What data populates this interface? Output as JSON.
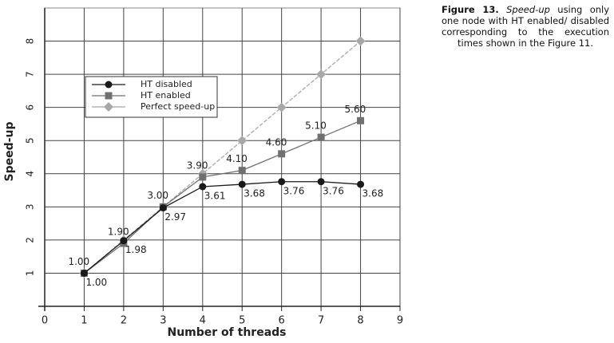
{
  "chart_data": {
    "type": "line",
    "x_label": "Number of threads",
    "y_label": "Speed-up",
    "x": [
      1,
      2,
      3,
      4,
      5,
      6,
      7,
      8
    ],
    "series": [
      {
        "name": "HT disabled",
        "color": "#1a1a1a",
        "marker": "circle",
        "label_position": "below",
        "values": [
          1.0,
          1.98,
          2.97,
          3.61,
          3.68,
          3.76,
          3.76,
          3.68
        ],
        "value_labels": [
          "1.00",
          "1.98",
          "2.97",
          "3.61",
          "3.68",
          "3.76",
          "3.76",
          "3.68"
        ]
      },
      {
        "name": "HT enabled",
        "color": "#707070",
        "marker": "square",
        "label_position": "above",
        "values": [
          1.0,
          1.9,
          3.0,
          3.9,
          4.1,
          4.6,
          5.1,
          5.6
        ],
        "value_labels": [
          "1.00",
          "1.90",
          "3.00",
          "3.90",
          "4.10",
          "4.60",
          "5.10",
          "5.60"
        ]
      },
      {
        "name": "Perfect speed-up",
        "color": "#a8a8a8",
        "marker": "diamond",
        "values": [
          1,
          2,
          3,
          4,
          5,
          6,
          7,
          8
        ]
      }
    ],
    "xlim": [
      0,
      9
    ],
    "xticks": [
      0,
      1,
      2,
      3,
      4,
      5,
      6,
      7,
      8,
      9
    ],
    "ylim": [
      0,
      9
    ],
    "yticks": [
      1,
      2,
      3,
      4,
      5,
      6,
      7,
      8
    ],
    "grid": true
  },
  "caption": {
    "label": "Figure 13.",
    "emphasis": "Speed-up",
    "text": "using only one node with HT enabled/ disabled corresponding to the execution times shown in the Figure 11."
  }
}
